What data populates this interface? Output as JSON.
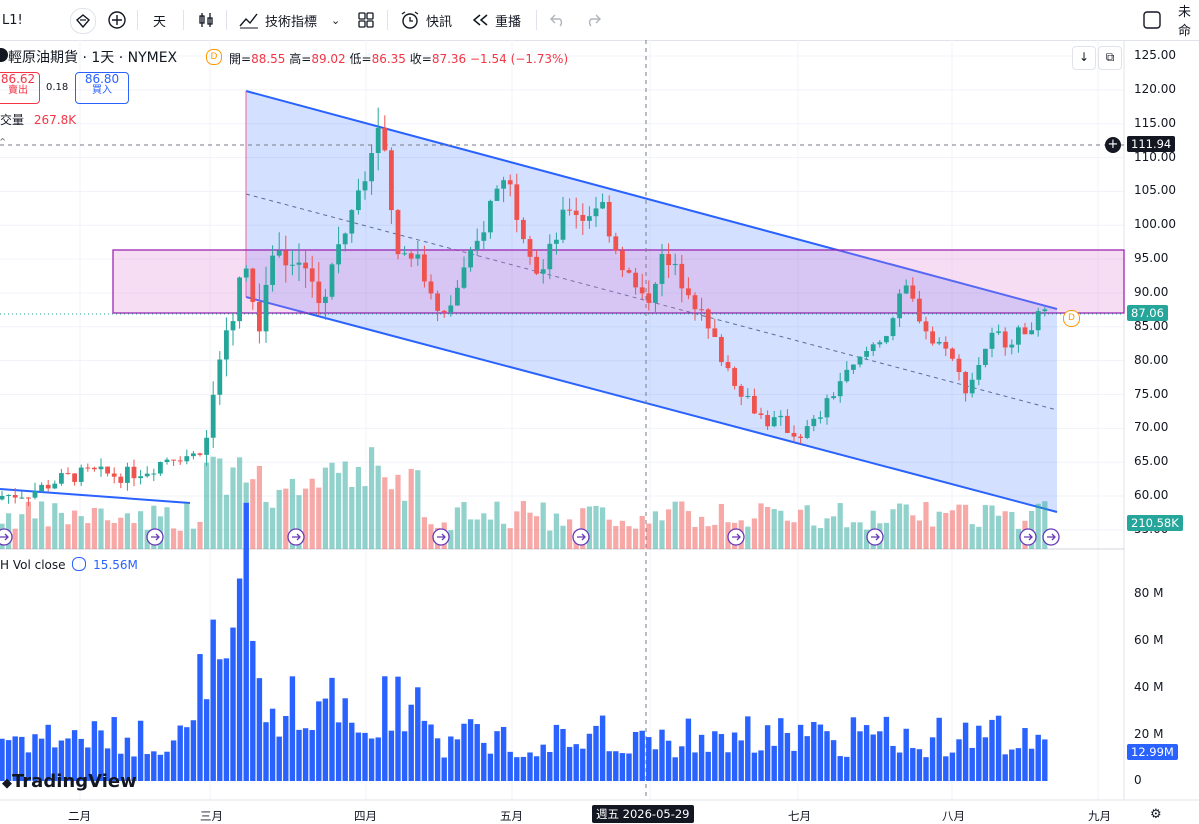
{
  "toolbar": {
    "symbol_fragment": "L1!",
    "interval": "天",
    "indicators_label": "技術指標",
    "alert_label": "快訊",
    "replay_label": "重播",
    "right_fragment": "未命"
  },
  "legend": {
    "title": "輕原油期貨 · 1天 · NYMEX",
    "open_label": "開=",
    "open": "88.55",
    "high_label": "高=",
    "high": "89.02",
    "low_label": "低=",
    "low": "86.35",
    "close_label": "收=",
    "close": "87.36",
    "change": "−1.54 (−1.73%)",
    "sell_price": "86.62",
    "sell_label": "賣出",
    "spread": "0.18",
    "buy_price": "86.80",
    "buy_label": "買入",
    "volume_label": "交量",
    "volume_value": "267.8K"
  },
  "price_axis": {
    "ticks": [
      "125.00",
      "120.00",
      "115.00",
      "110.00",
      "105.00",
      "100.00",
      "95.00",
      "90.00",
      "85.00",
      "80.00",
      "75.00",
      "70.00",
      "65.00",
      "60.00",
      "55.00"
    ],
    "crosshair_price": "111.94",
    "last_price": "87.06",
    "volume_tag": "210.58K"
  },
  "indicator": {
    "name": "H Vol close",
    "value": "15.56M",
    "ticks": [
      "80 M",
      "60 M",
      "40 M",
      "20 M",
      "0"
    ],
    "last_tag": "12.99M"
  },
  "time_axis": {
    "labels": [
      "二月",
      "三月",
      "四月",
      "五月",
      "七月",
      "八月",
      "九月"
    ],
    "crosshair_date": "週五 2026-05-29"
  },
  "brand": "TradingView",
  "colors": {
    "up": "#26a69a",
    "down": "#ef5350",
    "channel": "#2962ff",
    "zone": "#9c27b0",
    "volume": "#2962ff"
  }
}
